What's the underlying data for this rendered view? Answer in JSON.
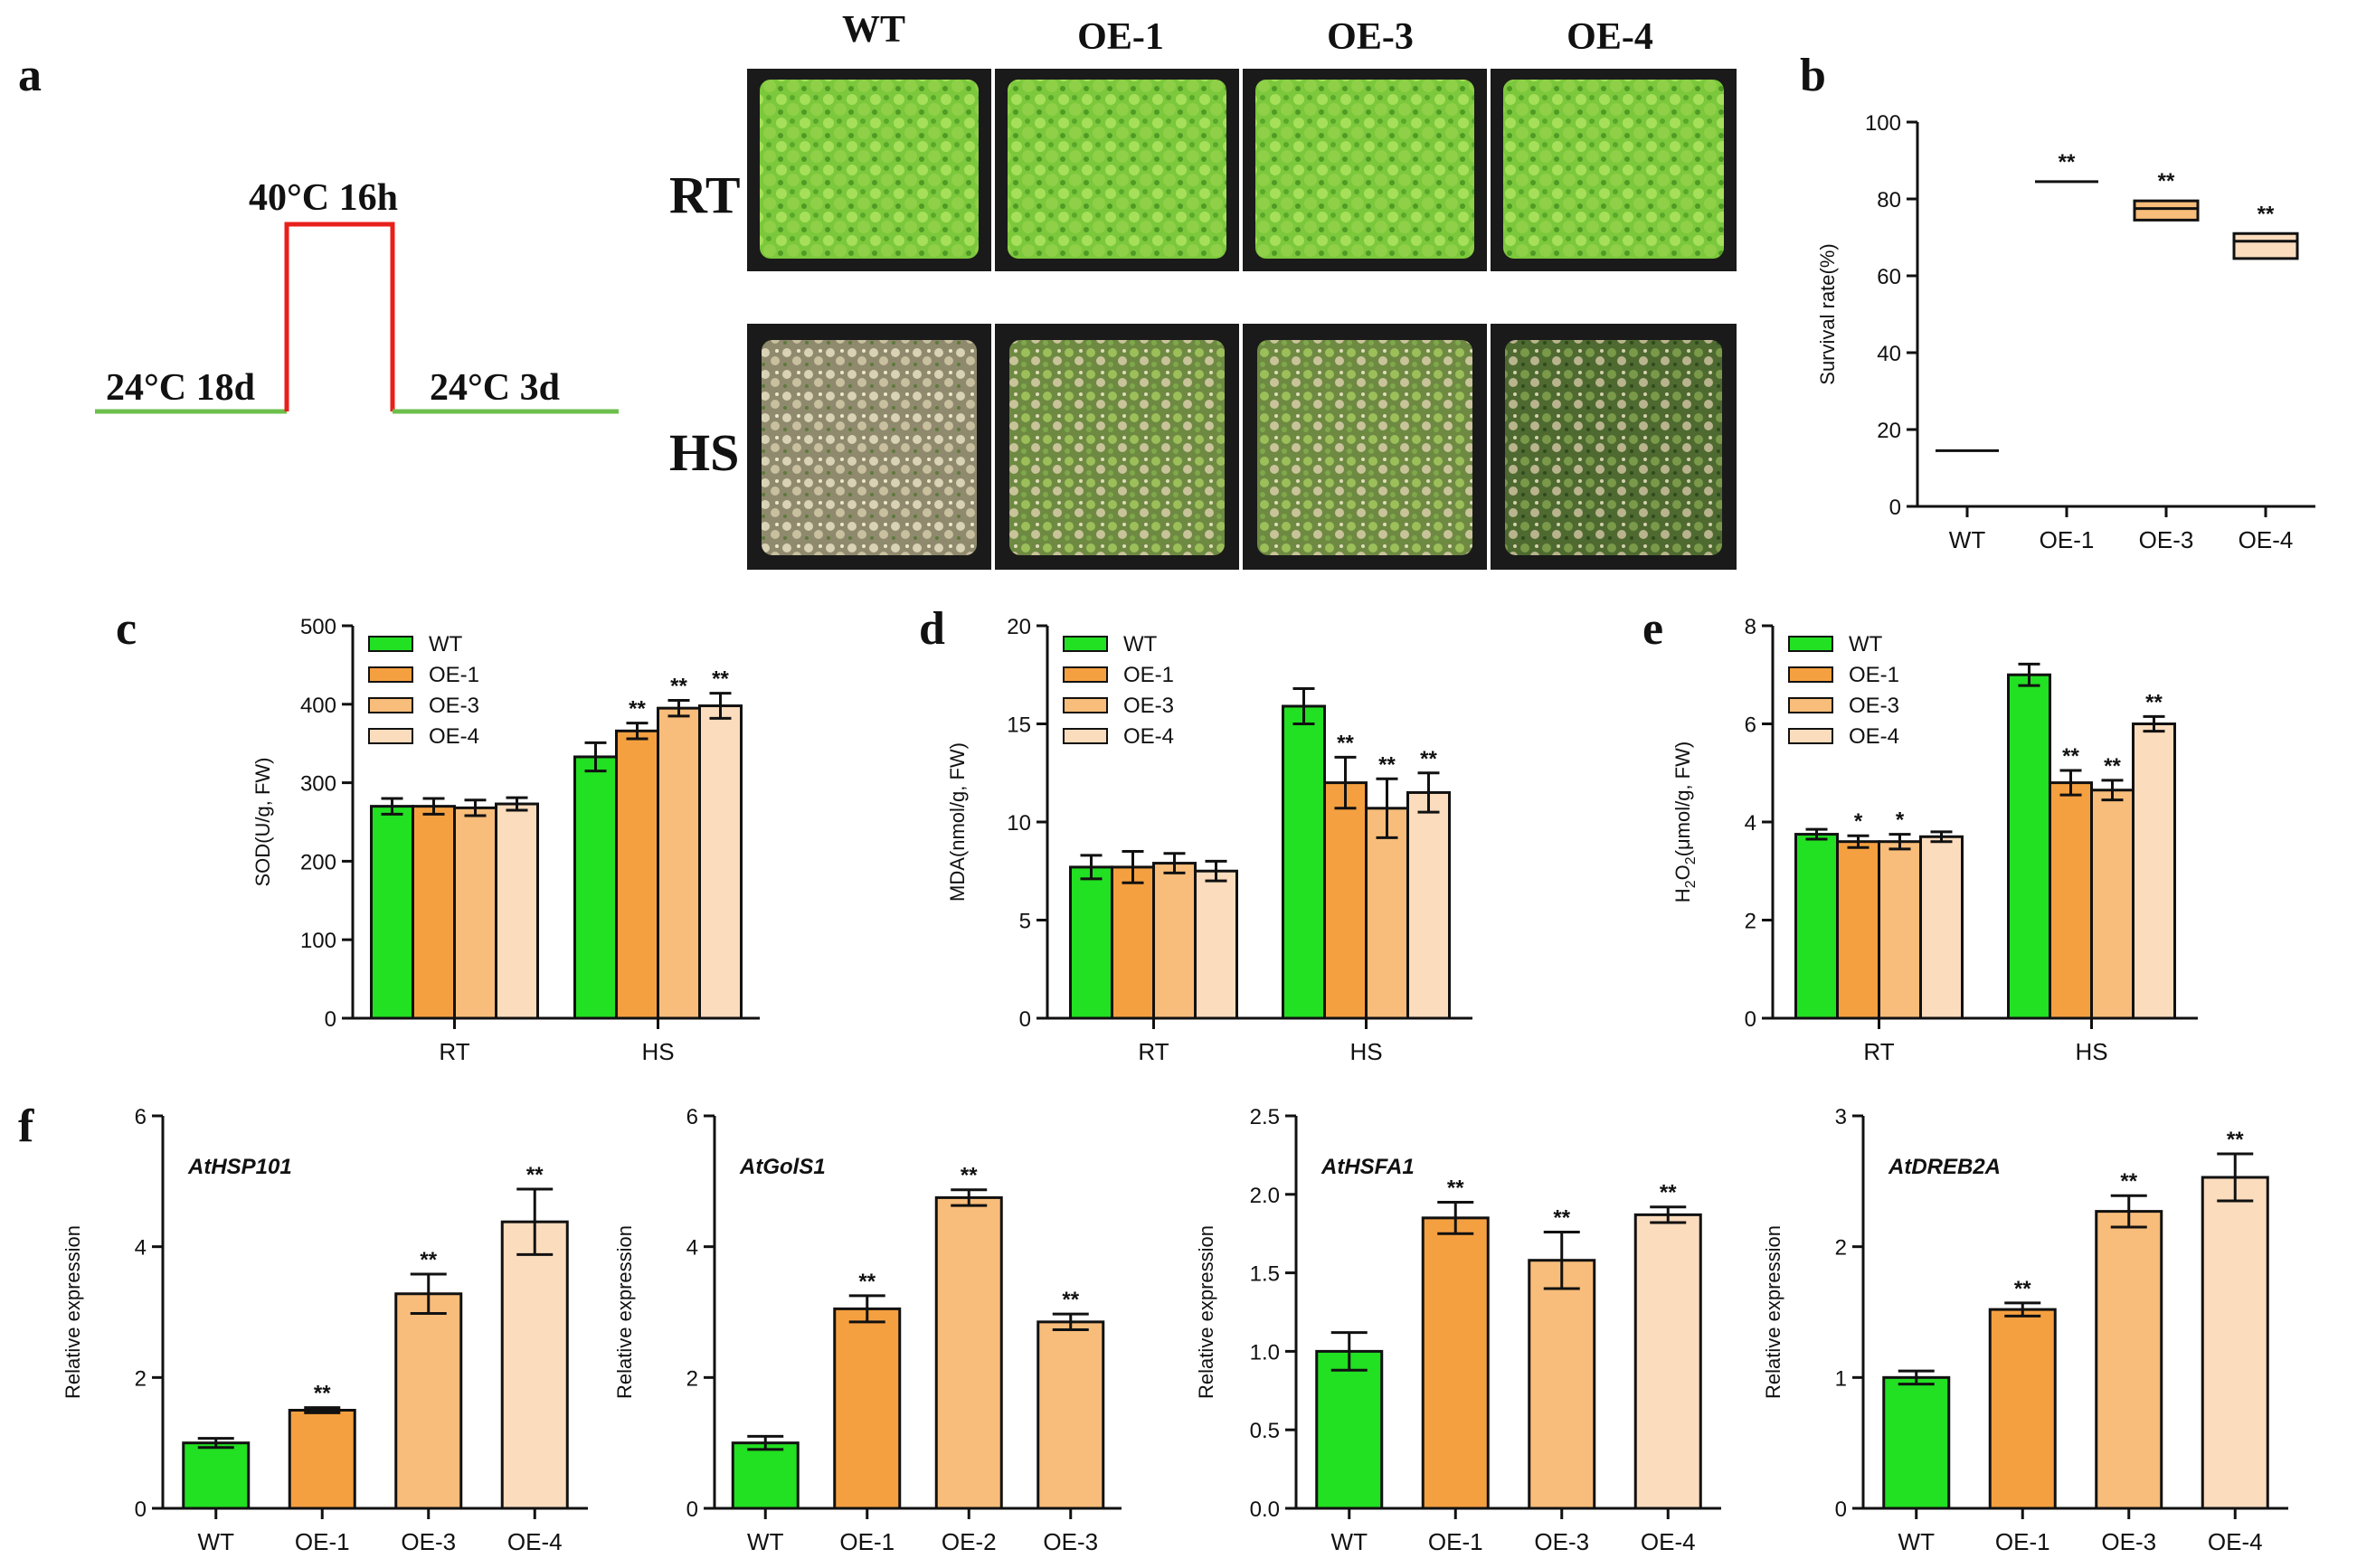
{
  "panel_labels": {
    "a": "a",
    "b": "b",
    "c": "c",
    "d": "d",
    "e": "e",
    "f": "f"
  },
  "colors": {
    "WT": "#22e022",
    "OE-1": "#f5a040",
    "OE-2": "#f8bd7a",
    "OE-3": "#f8bd7a",
    "OE-4": "#fbdcbd",
    "rt_line": "#6cbf4c",
    "hs_line": "#e8201c"
  },
  "schedule": {
    "pre": "24°C 18d",
    "stress": "40°C 16h",
    "post": "24°C 3d"
  },
  "photos": {
    "columns": [
      "WT",
      "OE-1",
      "OE-3",
      "OE-4"
    ],
    "rows": [
      "RT",
      "HS"
    ]
  },
  "chart_data": [
    {
      "id": "b",
      "type": "box",
      "title": "",
      "xlabel": "",
      "ylabel": "Survival rate(%)",
      "ylim": [
        0,
        100
      ],
      "yticks": [
        0,
        20,
        40,
        60,
        80,
        100
      ],
      "categories": [
        "WT",
        "OE-1",
        "OE-3",
        "OE-4"
      ],
      "boxes": [
        {
          "low": 14.5,
          "median": 14.5,
          "high": 14.5,
          "sig": ""
        },
        {
          "low": 84.5,
          "median": 84.5,
          "high": 84.5,
          "sig": "**"
        },
        {
          "low": 74.5,
          "median": 77.5,
          "high": 79.5,
          "sig": "**"
        },
        {
          "low": 64.5,
          "median": 69,
          "high": 71,
          "sig": "**"
        }
      ]
    },
    {
      "id": "c",
      "type": "bar",
      "title": "",
      "xlabel": "",
      "ylabel": "SOD(U/g, FW)",
      "ylim": [
        0,
        500
      ],
      "yticks": [
        0,
        100,
        200,
        300,
        400,
        500
      ],
      "categories": [
        "RT",
        "HS"
      ],
      "legend": [
        "WT",
        "OE-1",
        "OE-3",
        "OE-4"
      ],
      "series": [
        {
          "name": "WT",
          "values": [
            270,
            333
          ],
          "errors": [
            10,
            18
          ],
          "sig": [
            "",
            ""
          ]
        },
        {
          "name": "OE-1",
          "values": [
            270,
            366
          ],
          "errors": [
            10,
            10
          ],
          "sig": [
            "",
            "**"
          ]
        },
        {
          "name": "OE-3",
          "values": [
            268,
            395
          ],
          "errors": [
            10,
            10
          ],
          "sig": [
            "",
            "**"
          ]
        },
        {
          "name": "OE-4",
          "values": [
            273,
            398
          ],
          "errors": [
            8,
            16
          ],
          "sig": [
            "",
            "**"
          ]
        }
      ]
    },
    {
      "id": "d",
      "type": "bar",
      "title": "",
      "xlabel": "",
      "ylabel": "MDA(nmol/g, FW)",
      "ylim": [
        0,
        20
      ],
      "yticks": [
        0,
        5,
        10,
        15,
        20
      ],
      "categories": [
        "RT",
        "HS"
      ],
      "legend": [
        "WT",
        "OE-1",
        "OE-3",
        "OE-4"
      ],
      "series": [
        {
          "name": "WT",
          "values": [
            7.7,
            15.9
          ],
          "errors": [
            0.6,
            0.9
          ],
          "sig": [
            "",
            ""
          ]
        },
        {
          "name": "OE-1",
          "values": [
            7.7,
            12.0
          ],
          "errors": [
            0.8,
            1.3
          ],
          "sig": [
            "",
            "**"
          ]
        },
        {
          "name": "OE-3",
          "values": [
            7.9,
            10.7
          ],
          "errors": [
            0.5,
            1.5
          ],
          "sig": [
            "",
            "**"
          ]
        },
        {
          "name": "OE-4",
          "values": [
            7.5,
            11.5
          ],
          "errors": [
            0.5,
            1.0
          ],
          "sig": [
            "",
            "**"
          ]
        }
      ]
    },
    {
      "id": "e",
      "type": "bar",
      "title": "",
      "xlabel": "",
      "ylabel": "H2O2(μmol/g, FW)",
      "ylim": [
        0,
        8
      ],
      "yticks": [
        0,
        2,
        4,
        6,
        8
      ],
      "categories": [
        "RT",
        "HS"
      ],
      "legend": [
        "WT",
        "OE-1",
        "OE-3",
        "OE-4"
      ],
      "series": [
        {
          "name": "WT",
          "values": [
            3.75,
            7.0
          ],
          "errors": [
            0.1,
            0.22
          ],
          "sig": [
            "",
            ""
          ]
        },
        {
          "name": "OE-1",
          "values": [
            3.6,
            4.8
          ],
          "errors": [
            0.12,
            0.25
          ],
          "sig": [
            "*",
            "**"
          ]
        },
        {
          "name": "OE-3",
          "values": [
            3.6,
            4.65
          ],
          "errors": [
            0.15,
            0.2
          ],
          "sig": [
            "*",
            "**"
          ]
        },
        {
          "name": "OE-4",
          "values": [
            3.7,
            6.0
          ],
          "errors": [
            0.1,
            0.15
          ],
          "sig": [
            "",
            "**"
          ]
        }
      ]
    },
    {
      "id": "f1",
      "type": "bar",
      "gene": "AtHSP101",
      "title": "",
      "xlabel": "",
      "ylabel": "Relative expression",
      "ylim": [
        0,
        6
      ],
      "yticks": [
        0,
        2,
        4,
        6
      ],
      "categories": [
        "WT",
        "OE-1",
        "OE-3",
        "OE-4"
      ],
      "values": [
        1.0,
        1.5,
        3.28,
        4.38
      ],
      "errors": [
        0.07,
        0.04,
        0.3,
        0.5
      ],
      "sig": [
        "",
        "**",
        "**",
        "**"
      ]
    },
    {
      "id": "f2",
      "type": "bar",
      "gene": "AtGolS1",
      "title": "",
      "xlabel": "",
      "ylabel": "Relative expression",
      "ylim": [
        0,
        6
      ],
      "yticks": [
        0,
        2,
        4,
        6
      ],
      "categories": [
        "WT",
        "OE-1",
        "OE-2",
        "OE-3"
      ],
      "values": [
        1.0,
        3.05,
        4.75,
        2.85
      ],
      "errors": [
        0.1,
        0.2,
        0.12,
        0.12
      ],
      "sig": [
        "",
        "**",
        "**",
        "**"
      ]
    },
    {
      "id": "f3",
      "type": "bar",
      "gene": "AtHSFA1",
      "title": "",
      "xlabel": "",
      "ylabel": "Relative expression",
      "ylim": [
        0,
        2.5
      ],
      "yticks": [
        0.0,
        0.5,
        1.0,
        1.5,
        2.0,
        2.5
      ],
      "tick_decimals": 1,
      "categories": [
        "WT",
        "OE-1",
        "OE-3",
        "OE-4"
      ],
      "values": [
        1.0,
        1.85,
        1.58,
        1.87
      ],
      "errors": [
        0.12,
        0.1,
        0.18,
        0.05
      ],
      "sig": [
        "",
        "**",
        "**",
        "**"
      ]
    },
    {
      "id": "f4",
      "type": "bar",
      "gene": "AtDREB2A",
      "title": "",
      "xlabel": "",
      "ylabel": "Relative expression",
      "ylim": [
        0,
        3
      ],
      "yticks": [
        0,
        1,
        2,
        3
      ],
      "categories": [
        "WT",
        "OE-1",
        "OE-3",
        "OE-4"
      ],
      "values": [
        1.0,
        1.52,
        2.27,
        2.53
      ],
      "errors": [
        0.05,
        0.05,
        0.12,
        0.18
      ],
      "sig": [
        "",
        "**",
        "**",
        "**"
      ]
    }
  ]
}
